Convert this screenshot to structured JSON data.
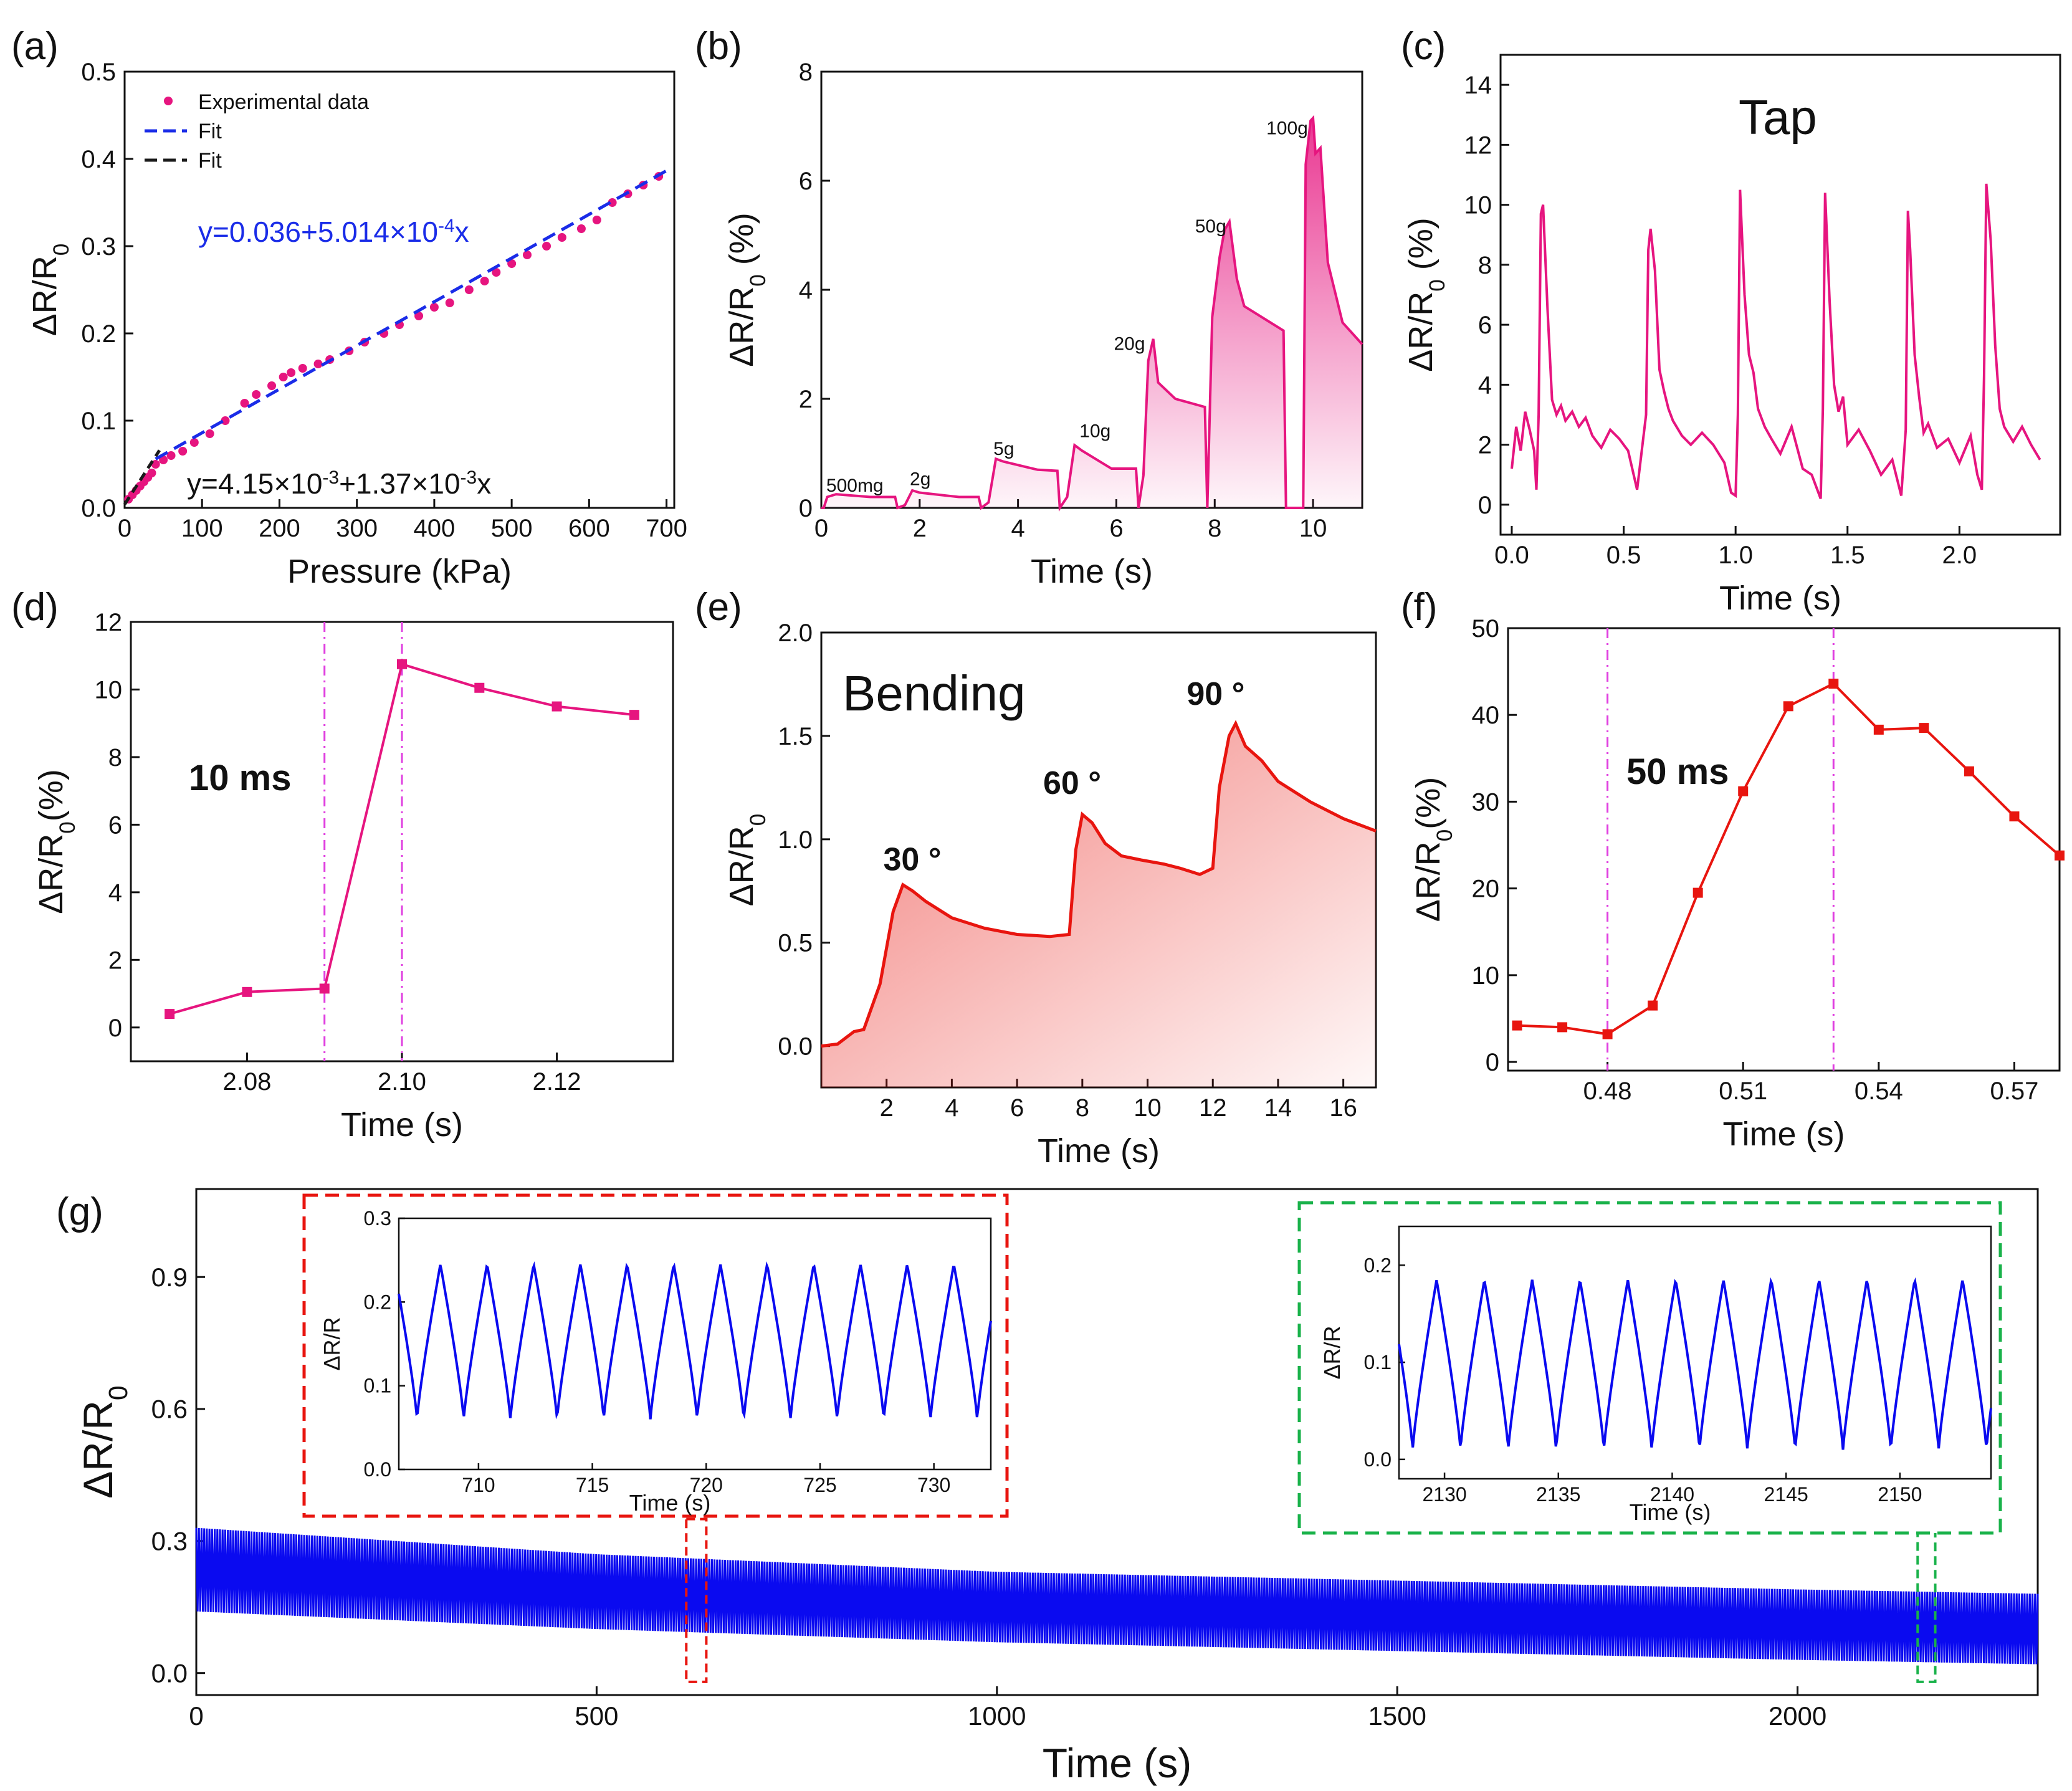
{
  "colors": {
    "magenta": "#e6157f",
    "blue_fit": "#1a2ce8",
    "black_fit": "#1a1a1a",
    "red_line": "#e8150f",
    "guide": "#e040e0",
    "cycle_blue": "#0a0af0",
    "box_red": "#e8150f",
    "box_green": "#19b24a"
  },
  "chart_data": [
    {
      "id": "a",
      "panel_label": "(a)",
      "type": "scatter",
      "xlabel": "Pressure (kPa)",
      "ylabel_main": "ΔR/R",
      "ylabel_sub": "0",
      "xlim": [
        0,
        710
      ],
      "ylim": [
        0,
        0.5
      ],
      "xticks": [
        0,
        100,
        200,
        300,
        400,
        500,
        600,
        700
      ],
      "yticks": [
        0.0,
        0.1,
        0.2,
        0.3,
        0.4,
        0.5
      ],
      "ytick_labels": [
        "0.0",
        "0.1",
        "0.2",
        "0.3",
        "0.4",
        "0.5"
      ],
      "legend": [
        "Experimental data",
        "Fit",
        "Fit"
      ],
      "equation_blue": "y=0.036+5.014×10",
      "equation_blue_exp": "-4",
      "equation_blue_tail": "x",
      "equation_black": "y=4.15×10",
      "equation_black_exp": "-3",
      "equation_black_mid": "+1.37×10",
      "equation_black_exp2": "-3",
      "equation_black_tail": "x",
      "series": [
        {
          "type": "scatter",
          "x": [
            5,
            10,
            15,
            20,
            25,
            30,
            35,
            40,
            50,
            60,
            75,
            90,
            110,
            130,
            155,
            170,
            190,
            205,
            215,
            230,
            250,
            265,
            290,
            310,
            335,
            355,
            380,
            400,
            420,
            445,
            465,
            480,
            500,
            520,
            545,
            565,
            590,
            610,
            630,
            650,
            670,
            690
          ],
          "y": [
            0.01,
            0.015,
            0.02,
            0.025,
            0.03,
            0.035,
            0.04,
            0.05,
            0.055,
            0.06,
            0.065,
            0.075,
            0.085,
            0.1,
            0.12,
            0.13,
            0.14,
            0.15,
            0.155,
            0.16,
            0.165,
            0.17,
            0.18,
            0.19,
            0.2,
            0.21,
            0.22,
            0.23,
            0.235,
            0.25,
            0.26,
            0.27,
            0.28,
            0.29,
            0.3,
            0.31,
            0.32,
            0.33,
            0.35,
            0.36,
            0.37,
            0.38
          ]
        },
        {
          "type": "line",
          "style": "blue",
          "x": [
            40,
            705
          ],
          "y": [
            0.056,
            0.389
          ]
        },
        {
          "type": "line",
          "style": "black",
          "x": [
            0,
            45
          ],
          "y": [
            0.004,
            0.066
          ]
        }
      ]
    },
    {
      "id": "b",
      "panel_label": "(b)",
      "type": "area",
      "xlabel": "Time (s)",
      "ylabel_main": "ΔR/R",
      "ylabel_sub": "0",
      "ylabel_tail": " (%)",
      "xlim": [
        0,
        11
      ],
      "ylim": [
        0,
        8
      ],
      "xticks": [
        0,
        2,
        4,
        6,
        8,
        10
      ],
      "yticks": [
        0,
        2,
        4,
        6,
        8
      ],
      "annotations": [
        {
          "text": "500mg",
          "x": 0.1,
          "y": 0.3
        },
        {
          "text": "2g",
          "x": 1.8,
          "y": 0.42
        },
        {
          "text": "5g",
          "x": 3.5,
          "y": 0.97
        },
        {
          "text": "10g",
          "x": 5.25,
          "y": 1.3
        },
        {
          "text": "20g",
          "x": 5.95,
          "y": 2.9
        },
        {
          "text": "50g",
          "x": 7.6,
          "y": 5.05
        },
        {
          "text": "100g",
          "x": 9.05,
          "y": 6.85
        }
      ],
      "series": [
        {
          "name": "",
          "x": [
            0,
            0.05,
            0.12,
            0.3,
            1.0,
            1.5,
            1.55,
            1.7,
            1.85,
            2.0,
            2.8,
            3.2,
            3.25,
            3.4,
            3.55,
            3.7,
            4.4,
            4.8,
            4.85,
            5.0,
            5.15,
            5.3,
            5.9,
            6.4,
            6.45,
            6.55,
            6.65,
            6.75,
            6.85,
            7.2,
            7.8,
            7.85,
            7.95,
            8.1,
            8.2,
            8.3,
            8.45,
            8.6,
            9.4,
            9.45,
            9.8,
            9.85,
            9.95,
            10.0,
            10.05,
            10.15,
            10.3,
            10.6,
            11.0
          ],
          "y": [
            0,
            0,
            0.2,
            0.25,
            0.2,
            0.2,
            0,
            0.05,
            0.32,
            0.28,
            0.2,
            0.2,
            0,
            0.1,
            0.9,
            0.85,
            0.7,
            0.68,
            0,
            0.2,
            1.15,
            1.05,
            0.72,
            0.72,
            0,
            0.6,
            2.7,
            3.1,
            2.3,
            2.0,
            1.85,
            0,
            3.5,
            4.6,
            5.1,
            5.25,
            4.2,
            3.7,
            3.25,
            0,
            0,
            6.3,
            7.1,
            7.15,
            6.5,
            6.6,
            4.5,
            3.4,
            3.0
          ]
        }
      ]
    },
    {
      "id": "c",
      "panel_label": "(c)",
      "type": "line",
      "xlabel": "Time (s)",
      "ylabel_main": "ΔR/R",
      "ylabel_sub": "0",
      "ylabel_tail": " (%)",
      "annotation": "Tap",
      "xlim": [
        -0.05,
        2.45
      ],
      "ylim": [
        -1,
        15
      ],
      "xticks": [
        0.0,
        0.5,
        1.0,
        1.5,
        2.0
      ],
      "xtick_labels": [
        "0.0",
        "0.5",
        "1.0",
        "1.5",
        "2.0"
      ],
      "yticks": [
        0,
        2,
        4,
        6,
        8,
        10,
        12,
        14
      ],
      "series": [
        {
          "name": "",
          "x": [
            0.0,
            0.02,
            0.04,
            0.06,
            0.08,
            0.1,
            0.11,
            0.12,
            0.13,
            0.14,
            0.16,
            0.18,
            0.2,
            0.22,
            0.24,
            0.27,
            0.3,
            0.33,
            0.36,
            0.4,
            0.44,
            0.48,
            0.52,
            0.56,
            0.6,
            0.61,
            0.62,
            0.64,
            0.66,
            0.68,
            0.7,
            0.72,
            0.76,
            0.8,
            0.85,
            0.9,
            0.95,
            0.98,
            1.0,
            1.01,
            1.02,
            1.04,
            1.06,
            1.08,
            1.1,
            1.13,
            1.16,
            1.2,
            1.25,
            1.3,
            1.34,
            1.38,
            1.39,
            1.4,
            1.42,
            1.44,
            1.46,
            1.48,
            1.5,
            1.55,
            1.6,
            1.65,
            1.7,
            1.74,
            1.76,
            1.77,
            1.78,
            1.8,
            1.82,
            1.84,
            1.86,
            1.9,
            1.95,
            2.0,
            2.05,
            2.08,
            2.1,
            2.11,
            2.12,
            2.14,
            2.16,
            2.18,
            2.2,
            2.24,
            2.28,
            2.32,
            2.36
          ],
          "y": [
            1.2,
            2.6,
            1.8,
            3.1,
            2.5,
            1.8,
            0.5,
            3.0,
            9.7,
            10.0,
            6.5,
            3.5,
            3.0,
            3.3,
            2.8,
            3.1,
            2.6,
            2.9,
            2.3,
            1.9,
            2.5,
            2.2,
            1.8,
            0.5,
            3.0,
            8.5,
            9.2,
            7.8,
            4.5,
            3.8,
            3.2,
            2.8,
            2.3,
            2.0,
            2.4,
            2.0,
            1.4,
            0.4,
            0.3,
            3.0,
            10.5,
            7.0,
            5.0,
            4.4,
            3.2,
            2.6,
            2.2,
            1.7,
            2.6,
            1.2,
            1.0,
            0.2,
            3.2,
            10.4,
            6.8,
            4.0,
            3.1,
            3.6,
            2.0,
            2.5,
            1.8,
            1.0,
            1.5,
            0.3,
            2.5,
            9.8,
            8.5,
            5.0,
            3.6,
            2.4,
            2.7,
            1.9,
            2.2,
            1.4,
            2.3,
            1.0,
            0.5,
            4.3,
            10.7,
            8.8,
            5.3,
            3.2,
            2.6,
            2.1,
            2.6,
            2.0,
            1.5
          ]
        }
      ]
    },
    {
      "id": "d",
      "panel_label": "(d)",
      "type": "line",
      "xlabel": "Time (s)",
      "ylabel_main": "ΔR/R",
      "ylabel_sub": "0",
      "ylabel_tail": "(%)",
      "annotation": "10 ms",
      "xlim": [
        2.065,
        2.135
      ],
      "ylim": [
        -1,
        12
      ],
      "xticks": [
        2.08,
        2.1,
        2.12
      ],
      "xtick_labels": [
        "2.08",
        "2.10",
        "2.12"
      ],
      "yticks": [
        0,
        2,
        4,
        6,
        8,
        10,
        12
      ],
      "vlines": [
        2.09,
        2.1
      ],
      "series": [
        {
          "name": "",
          "x": [
            2.07,
            2.08,
            2.09,
            2.1,
            2.11,
            2.12,
            2.13
          ],
          "y": [
            0.4,
            1.05,
            1.15,
            10.75,
            10.05,
            9.5,
            9.25
          ]
        }
      ]
    },
    {
      "id": "e",
      "panel_label": "(e)",
      "type": "area",
      "xlabel": "Time (s)",
      "ylabel_main": "ΔR/R",
      "ylabel_sub": "0",
      "annotation": "Bending",
      "xlim": [
        0,
        17
      ],
      "ylim": [
        -0.2,
        2.0
      ],
      "xticks": [
        2,
        4,
        6,
        8,
        10,
        12,
        14,
        16
      ],
      "yticks": [
        0.0,
        0.5,
        1.0,
        1.5,
        2.0
      ],
      "ytick_labels": [
        "0.0",
        "0.5",
        "1.0",
        "1.5",
        "2.0"
      ],
      "angle_labels": [
        {
          "text": "30 °",
          "x": 1.9,
          "y": 0.85
        },
        {
          "text": "60 °",
          "x": 6.8,
          "y": 1.22
        },
        {
          "text": "90 °",
          "x": 11.2,
          "y": 1.65
        }
      ],
      "series": [
        {
          "name": "",
          "x": [
            0,
            0.5,
            1.0,
            1.3,
            1.8,
            2.2,
            2.5,
            2.8,
            3.2,
            4,
            5,
            6,
            7,
            7.6,
            7.8,
            8.0,
            8.3,
            8.7,
            9.2,
            9.8,
            10.5,
            11,
            11.6,
            12,
            12.2,
            12.5,
            12.7,
            13.0,
            13.5,
            14,
            15,
            16,
            17
          ],
          "y": [
            0,
            0.01,
            0.07,
            0.08,
            0.3,
            0.65,
            0.78,
            0.75,
            0.7,
            0.62,
            0.57,
            0.54,
            0.53,
            0.54,
            0.95,
            1.12,
            1.08,
            0.98,
            0.92,
            0.9,
            0.88,
            0.86,
            0.83,
            0.86,
            1.25,
            1.5,
            1.56,
            1.45,
            1.38,
            1.28,
            1.18,
            1.1,
            1.04
          ]
        }
      ]
    },
    {
      "id": "f",
      "panel_label": "(f)",
      "type": "line",
      "xlabel": "Time (s)",
      "ylabel_main": "ΔR/R",
      "ylabel_sub": "0",
      "ylabel_tail": "(%)",
      "annotation": "50 ms",
      "xlim": [
        0.458,
        0.58
      ],
      "ylim": [
        -1,
        50
      ],
      "xticks": [
        0.48,
        0.51,
        0.54,
        0.57
      ],
      "xtick_labels": [
        "0.48",
        "0.51",
        "0.54",
        "0.57"
      ],
      "yticks": [
        0,
        10,
        20,
        30,
        40,
        50
      ],
      "vlines": [
        0.48,
        0.53
      ],
      "series": [
        {
          "name": "",
          "x": [
            0.46,
            0.47,
            0.48,
            0.49,
            0.5,
            0.51,
            0.52,
            0.53,
            0.54,
            0.55,
            0.56,
            0.57,
            0.58
          ],
          "y": [
            4.2,
            4.0,
            3.2,
            6.5,
            19.5,
            31.2,
            41.0,
            43.6,
            38.3,
            38.5,
            33.5,
            28.3,
            23.8
          ]
        }
      ]
    },
    {
      "id": "g",
      "panel_label": "(g)",
      "type": "area",
      "xlabel": "Time (s)",
      "ylabel_main": "ΔR/R",
      "ylabel_sub": "0",
      "xlim": [
        0,
        2300
      ],
      "ylim": [
        -0.05,
        1.1
      ],
      "xticks": [
        0,
        500,
        1000,
        1500,
        2000
      ],
      "yticks": [
        0.0,
        0.3,
        0.6,
        0.9
      ],
      "ytick_labels": [
        "0.0",
        "0.3",
        "0.6",
        "0.9"
      ],
      "band_upper": {
        "x": [
          0,
          500,
          1000,
          1500,
          2000,
          2300
        ],
        "y": [
          0.33,
          0.27,
          0.23,
          0.21,
          0.19,
          0.18
        ]
      },
      "band_lower": {
        "x": [
          0,
          500,
          1000,
          1500,
          2000,
          2300
        ],
        "y": [
          0.14,
          0.1,
          0.07,
          0.05,
          0.03,
          0.02
        ]
      },
      "zoom_marks": [
        {
          "x0": 612,
          "x1": 637,
          "color": "red"
        },
        {
          "x0": 2150,
          "x1": 2172,
          "color": "green"
        }
      ],
      "insets": [
        {
          "id": "g1",
          "type": "line",
          "xlabel": "Time (s)",
          "ylabel": "ΔR/R",
          "xlim": [
            706.5,
            732.5
          ],
          "ylim": [
            0,
            0.3
          ],
          "xticks": [
            710,
            715,
            720,
            725,
            730
          ],
          "yticks": [
            0.0,
            0.1,
            0.2,
            0.3
          ],
          "ytick_labels": [
            "0.0",
            "0.1",
            "0.2",
            "0.3"
          ],
          "period": 2.05,
          "phase": 707.3,
          "min": 0.06,
          "max": 0.245
        },
        {
          "id": "g2",
          "type": "line",
          "xlabel": "Time (s)",
          "ylabel": "ΔR/R",
          "xlim": [
            2128,
            2154
          ],
          "ylim": [
            -0.02,
            0.24
          ],
          "xticks": [
            2130,
            2135,
            2140,
            2145,
            2150
          ],
          "yticks": [
            0.0,
            0.1,
            0.2
          ],
          "ytick_labels": [
            "0.0",
            "0.1",
            "0.2"
          ],
          "period": 2.1,
          "phase": 2128.6,
          "min": 0.01,
          "max": 0.185
        }
      ]
    }
  ]
}
